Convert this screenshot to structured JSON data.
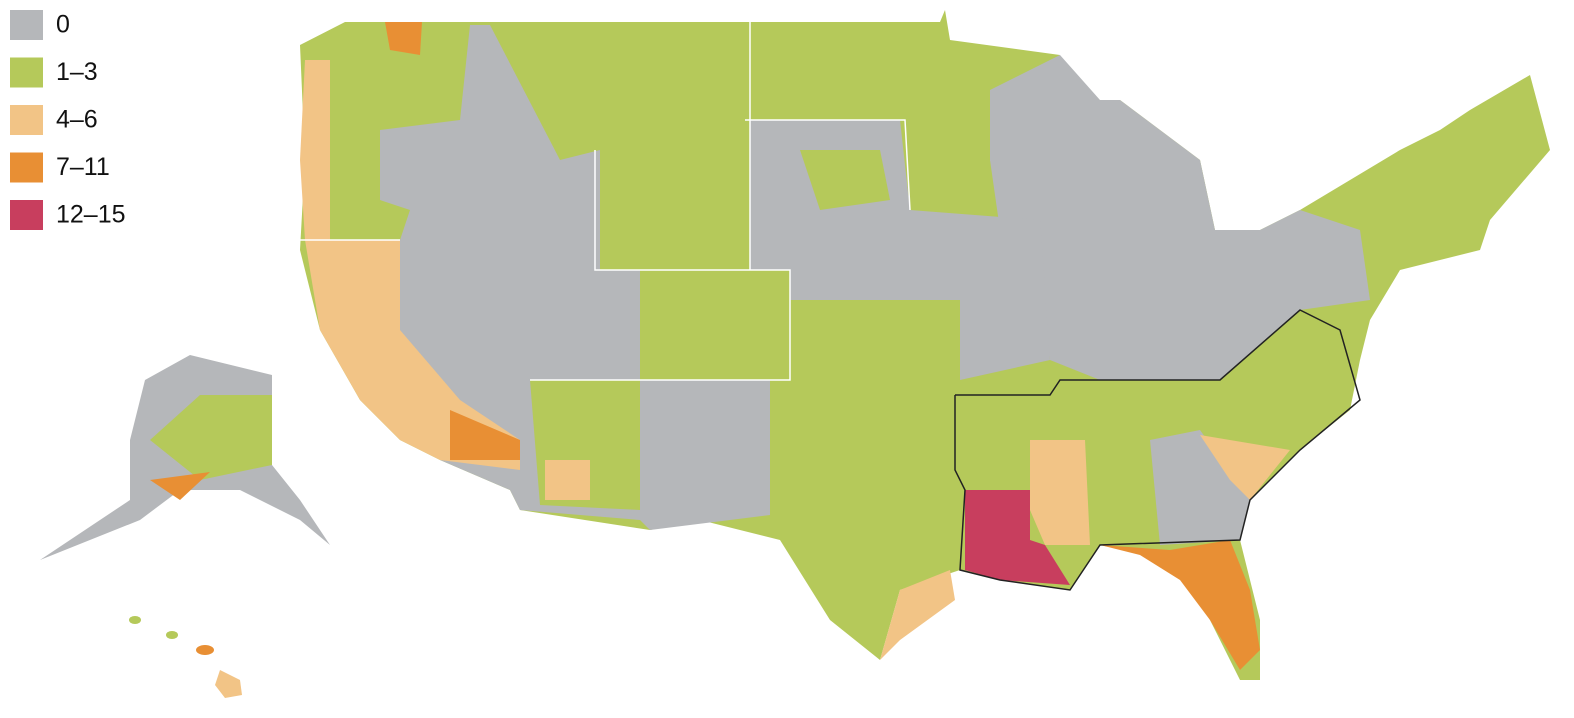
{
  "legend": {
    "items": [
      {
        "label": "0",
        "color": "#b5b7ba"
      },
      {
        "label": "1–3",
        "color": "#b5c95a"
      },
      {
        "label": "4–6",
        "color": "#f2c486"
      },
      {
        "label": "7–11",
        "color": "#e88f34"
      },
      {
        "label": "12–15",
        "color": "#c83e5e"
      }
    ]
  }
}
